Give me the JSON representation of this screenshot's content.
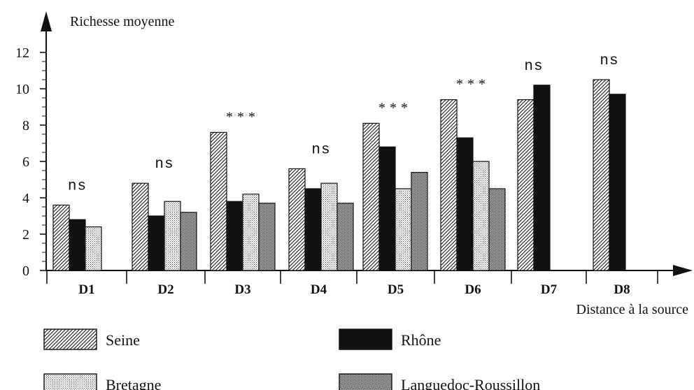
{
  "chart_data": {
    "type": "bar",
    "title": "",
    "ylabel": "Richesse moyenne",
    "xlabel": "Distance à la source",
    "ylim": [
      0,
      12
    ],
    "yticks": [
      0,
      2,
      4,
      6,
      8,
      10,
      12
    ],
    "grid": false,
    "legend_position": "bottom",
    "categories": [
      "D1",
      "D2",
      "D3",
      "D4",
      "D5",
      "D6",
      "D7",
      "D8"
    ],
    "annotations": [
      "ns",
      "ns",
      "***",
      "ns",
      "***",
      "***",
      "ns",
      "ns"
    ],
    "series": [
      {
        "name": "Seine",
        "pattern": "hatch",
        "values": [
          3.6,
          4.8,
          7.6,
          5.6,
          8.1,
          9.4,
          9.4,
          10.5
        ]
      },
      {
        "name": "Rhône",
        "pattern": "solid",
        "values": [
          2.8,
          3.0,
          3.8,
          4.5,
          6.8,
          7.3,
          10.2,
          9.7
        ]
      },
      {
        "name": "Bretagne",
        "pattern": "dots",
        "values": [
          2.4,
          3.8,
          4.2,
          4.8,
          4.5,
          6.0,
          null,
          null
        ]
      },
      {
        "name": "Languedoc-Roussillon",
        "pattern": "dense-dots",
        "values": [
          null,
          3.2,
          3.7,
          3.7,
          5.4,
          4.5,
          null,
          null
        ]
      }
    ]
  }
}
